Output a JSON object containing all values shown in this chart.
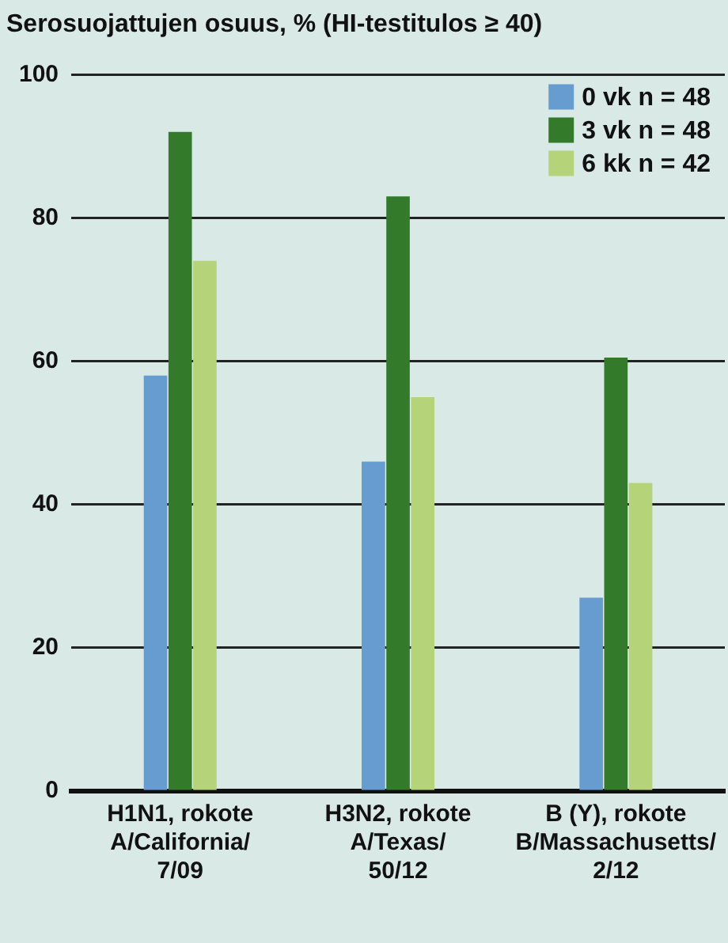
{
  "chart_data": {
    "type": "bar",
    "title": "Serosuojattujen osuus, % (HI-testitulos ≥ 40)",
    "categories": [
      "H1N1, rokote\nA/California/\n7/09",
      "H3N2, rokote\nA/Texas/\n50/12",
      "B (Y), rokote\nB/Massachusetts/\n2/12"
    ],
    "series": [
      {
        "name": "0 vk n = 48",
        "color": "#669ccf",
        "values": [
          58,
          46,
          27
        ]
      },
      {
        "name": "3 vk n = 48",
        "color": "#337b2b",
        "values": [
          92,
          83,
          60.5
        ]
      },
      {
        "name": "6 kk n = 42",
        "color": "#b5d47a",
        "values": [
          74,
          55,
          43
        ]
      }
    ],
    "ylim": [
      0,
      100
    ],
    "yticks": [
      0,
      20,
      40,
      60,
      80,
      100
    ],
    "grid": "y",
    "legend": "top right"
  }
}
